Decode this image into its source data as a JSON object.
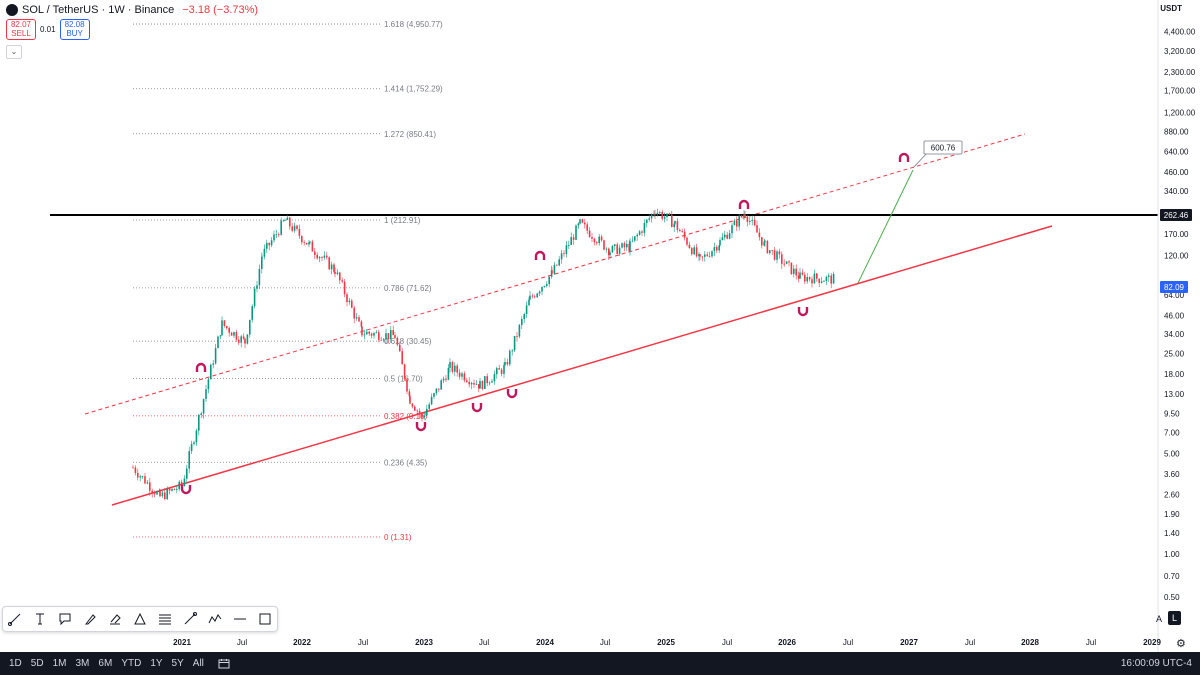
{
  "header": {
    "title": "SOL / TetherUS · 1W · Binance",
    "change": "−3.18 (−3.73%)"
  },
  "trade": {
    "sell_price": "82.07",
    "sell_label": "SELL",
    "spread": "0.01",
    "buy_price": "82.08",
    "buy_label": "BUY"
  },
  "currency": "USDT",
  "price_axis": {
    "labels": [
      "4,400.00",
      "3,200.00",
      "2,300.00",
      "1,700.00",
      "1,200.00",
      "880.00",
      "640.00",
      "460.00",
      "340.00",
      "170.00",
      "120.00",
      "64.00",
      "46.00",
      "34.00",
      "25.00",
      "18.00",
      "13.00",
      "9.50",
      "7.00",
      "5.00",
      "3.60",
      "2.60",
      "1.90",
      "1.40",
      "1.00",
      "0.70",
      "0.50"
    ],
    "resistance_tag": "262.46",
    "last_price_tag": "82.09",
    "auto_label": "A",
    "log_label": "L"
  },
  "time_axis": [
    "2021",
    "Jul",
    "2022",
    "Jul",
    "2023",
    "Jul",
    "2024",
    "Jul",
    "2025",
    "Jul",
    "2026",
    "Jul",
    "2027",
    "Jul",
    "2028",
    "Jul",
    "2029"
  ],
  "fib_levels": [
    {
      "label": "1.618 (4,950.77)",
      "price": 4950.77,
      "color": "#787b86"
    },
    {
      "label": "1.414 (1,752.29)",
      "price": 1752.29,
      "color": "#787b86"
    },
    {
      "label": "1.272 (850.41)",
      "price": 850.41,
      "color": "#787b86"
    },
    {
      "label": "1 (212.91)",
      "price": 212.91,
      "color": "#787b86"
    },
    {
      "label": "0.786 (71.62)",
      "price": 71.62,
      "color": "#787b86"
    },
    {
      "label": "0.618 (30.45)",
      "price": 30.45,
      "color": "#787b86"
    },
    {
      "label": "0.5 (16.70)",
      "price": 16.7,
      "color": "#787b86"
    },
    {
      "label": "0.382 (9.16)",
      "price": 9.16,
      "color": "#f23645"
    },
    {
      "label": "0.236 (4.35)",
      "price": 4.35,
      "color": "#787b86"
    },
    {
      "label": "0 (1.31)",
      "price": 1.31,
      "color": "#f23645"
    }
  ],
  "target_label": "600.76",
  "timeframes": [
    "1D",
    "5D",
    "1M",
    "3M",
    "6M",
    "YTD",
    "1Y",
    "5Y",
    "All"
  ],
  "clock": "16:00:09 UTC-4",
  "colors": {
    "up": "#089981",
    "down": "#f23645",
    "trendline": "#f23645",
    "resistance": "#000000",
    "projection": "#4caf50",
    "price_tag": "#2962ff"
  },
  "toolbar_icons": [
    "trendline-icon",
    "text-icon",
    "note-icon",
    "brush-icon",
    "eraser-icon",
    "triangle-icon",
    "fib-icon",
    "ruler-icon",
    "path-icon",
    "line-icon",
    "select-icon"
  ],
  "chart_data": {
    "type": "line",
    "title": "SOL / TetherUS · 1W · Binance",
    "scale": "log",
    "series": [
      {
        "x": [
          "2020-09",
          "2020-12",
          "2021-02",
          "2021-05",
          "2021-07",
          "2021-09",
          "2021-11",
          "2022-01",
          "2022-04",
          "2022-06",
          "2022-09",
          "2022-11",
          "2022-12",
          "2023-03",
          "2023-06",
          "2023-09",
          "2023-11",
          "2024-01",
          "2024-03",
          "2024-06",
          "2024-08",
          "2024-11",
          "2025-01",
          "2025-04",
          "2025-06",
          "2025-09",
          "2025-11",
          "2026-01",
          "2026-03"
        ],
        "values": [
          4,
          2.5,
          3,
          40,
          30,
          120,
          212,
          140,
          95,
          35,
          33,
          12,
          9,
          20,
          15,
          20,
          60,
          90,
          200,
          130,
          140,
          250,
          200,
          110,
          150,
          240,
          140,
          85,
          82
        ]
      }
    ]
  }
}
